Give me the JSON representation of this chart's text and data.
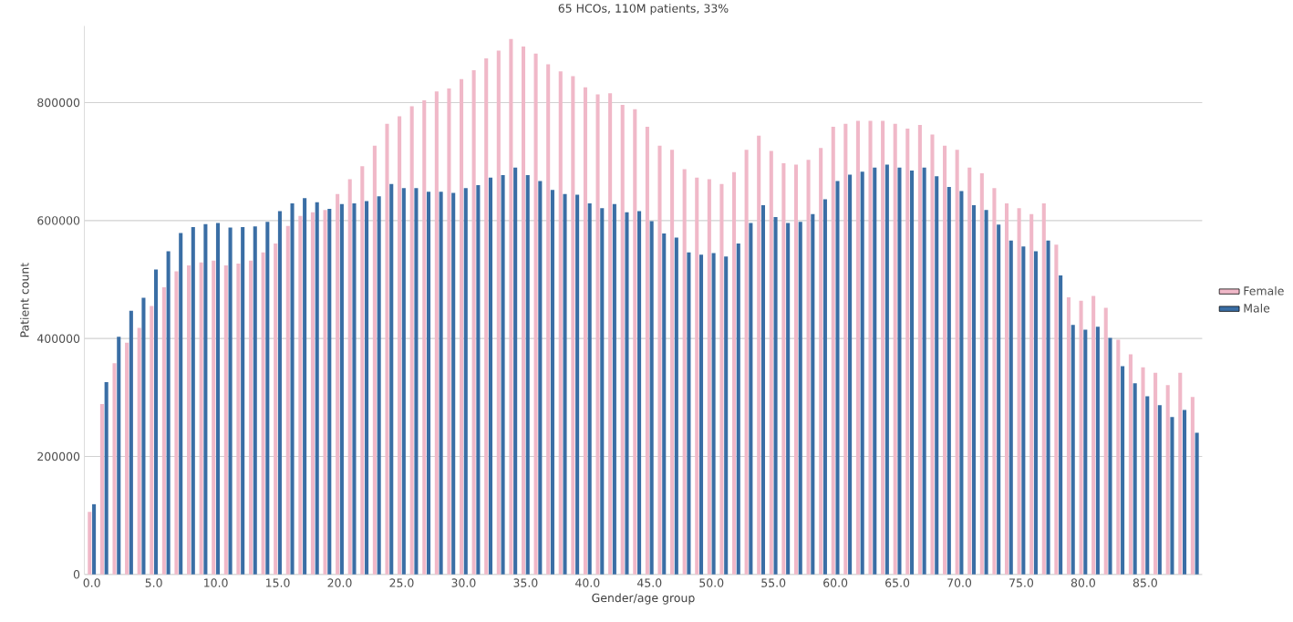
{
  "chart_data": {
    "type": "bar",
    "title": "65 HCOs, 110M patients, 33%",
    "xlabel": "Gender/age group",
    "ylabel": "Patient count",
    "categories": [
      "0.0",
      null,
      null,
      null,
      null,
      "5.0",
      null,
      null,
      null,
      null,
      "10.0",
      null,
      null,
      null,
      null,
      "15.0",
      null,
      null,
      null,
      null,
      "20.0",
      null,
      null,
      null,
      null,
      "25.0",
      null,
      null,
      null,
      null,
      "30.0",
      null,
      null,
      null,
      null,
      "35.0",
      null,
      null,
      null,
      null,
      "40.0",
      null,
      null,
      null,
      null,
      "45.0",
      null,
      null,
      null,
      null,
      "50.0",
      null,
      null,
      null,
      null,
      "55.0",
      null,
      null,
      null,
      null,
      "60.0",
      null,
      null,
      null,
      null,
      "65.0",
      null,
      null,
      null,
      null,
      "70.0",
      null,
      null,
      null,
      null,
      "75.0",
      null,
      null,
      null,
      null,
      "80.0",
      null,
      null,
      null,
      null,
      "85.0",
      null,
      null,
      null,
      null
    ],
    "series": [
      {
        "name": "Female",
        "color": "#f0b8c8",
        "values": [
          106000,
          289000,
          358000,
          393000,
          418000,
          455000,
          487000,
          514000,
          524000,
          529000,
          532000,
          524000,
          527000,
          532000,
          546000,
          561000,
          591000,
          608000,
          614000,
          618000,
          645000,
          670000,
          692000,
          727000,
          764000,
          777000,
          794000,
          804000,
          819000,
          824000,
          840000,
          855000,
          875000,
          888000,
          908000,
          895000,
          883000,
          865000,
          853000,
          845000,
          826000,
          814000,
          816000,
          796000,
          789000,
          759000,
          727000,
          720000,
          687000,
          673000,
          670000,
          662000,
          682000,
          720000,
          744000,
          718000,
          697000,
          695000,
          703000,
          723000,
          759000,
          764000,
          769000,
          769000,
          769000,
          764000,
          756000,
          762000,
          746000,
          727000,
          720000,
          690000,
          680000,
          655000,
          629000,
          621000,
          611000,
          629000,
          559000,
          470000,
          464000,
          472000,
          452000,
          398000,
          373000,
          351000,
          342000,
          321000,
          342000,
          301000
        ]
      },
      {
        "name": "Male",
        "color": "#3a6ea5",
        "values": [
          119000,
          326000,
          403000,
          447000,
          469000,
          517000,
          548000,
          579000,
          589000,
          594000,
          596000,
          588000,
          589000,
          590000,
          598000,
          616000,
          629000,
          638000,
          631000,
          620000,
          628000,
          629000,
          633000,
          641000,
          662000,
          655000,
          655000,
          649000,
          649000,
          647000,
          655000,
          660000,
          673000,
          677000,
          690000,
          677000,
          667000,
          652000,
          645000,
          644000,
          629000,
          621000,
          628000,
          614000,
          616000,
          599000,
          578000,
          571000,
          546000,
          542000,
          545000,
          539000,
          561000,
          596000,
          626000,
          606000,
          596000,
          598000,
          611000,
          636000,
          667000,
          678000,
          683000,
          690000,
          695000,
          690000,
          685000,
          690000,
          675000,
          657000,
          650000,
          626000,
          618000,
          593000,
          566000,
          556000,
          548000,
          566000,
          507000,
          423000,
          415000,
          420000,
          401000,
          353000,
          324000,
          302000,
          287000,
          267000,
          279000,
          240000
        ]
      }
    ],
    "ylim": [
      0,
      930000
    ],
    "yticks": [
      0,
      200000,
      400000,
      600000,
      800000
    ],
    "grid": "y",
    "legend": "right"
  }
}
